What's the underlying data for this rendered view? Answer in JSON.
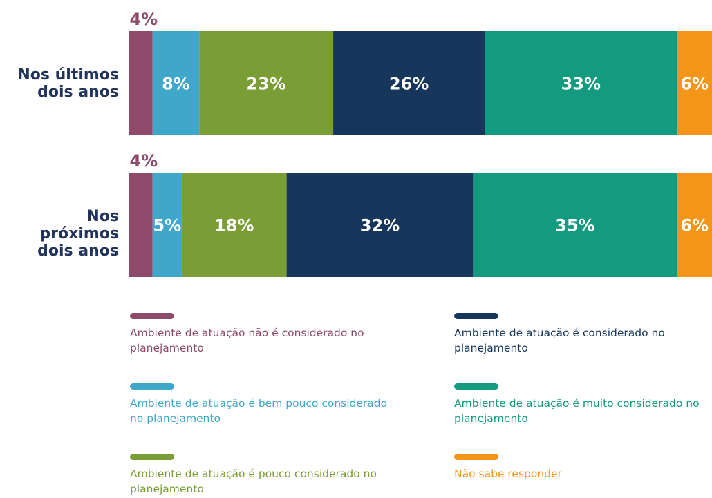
{
  "chart_data": {
    "type": "bar",
    "orientation": "horizontal",
    "stacked": true,
    "categories": [
      "Nos últimos dois anos",
      "Nos próximos dois anos"
    ],
    "xlim": [
      0,
      100
    ],
    "series": [
      {
        "name": "Ambiente de atuação não é considerado no planejamento",
        "color": "#8e4a6b",
        "values": [
          4,
          4
        ],
        "value_labels": [
          "4%",
          "4%"
        ]
      },
      {
        "name": "Ambiente de atuação é bem pouco considerado no planejamento",
        "color": "#3fa7c9",
        "values": [
          8,
          5
        ],
        "value_labels": [
          "8%",
          "5%"
        ]
      },
      {
        "name": "Ambiente de atuação é pouco considerado no planejamento",
        "color": "#7a9e35",
        "values": [
          23,
          18
        ],
        "value_labels": [
          "23%",
          "18%"
        ]
      },
      {
        "name": "Ambiente de atuação é considerado no planejamento",
        "color": "#17365c",
        "values": [
          26,
          32
        ],
        "value_labels": [
          "26%",
          "32%"
        ]
      },
      {
        "name": "Ambiente de atuação é muito considerado no planejamento",
        "color": "#149a7f",
        "values": [
          33,
          35
        ],
        "value_labels": [
          "33%",
          "35%"
        ]
      },
      {
        "name": "Não sabe responder",
        "color": "#f39519",
        "values": [
          6,
          6
        ],
        "value_labels": [
          "6%",
          "6%"
        ]
      }
    ]
  }
}
